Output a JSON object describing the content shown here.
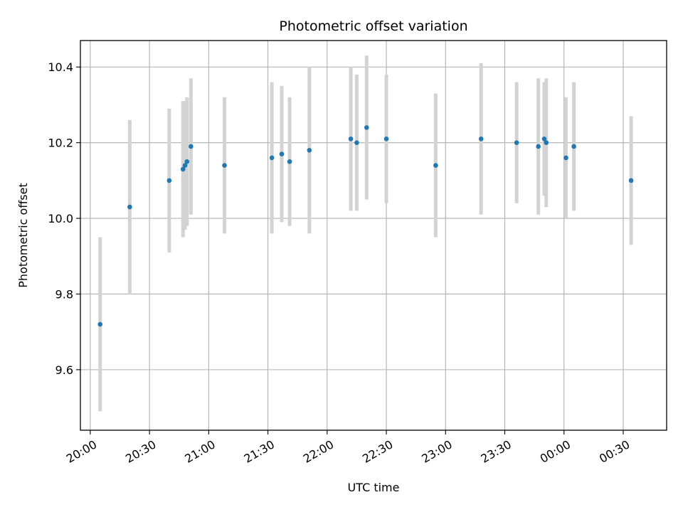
{
  "chart_data": {
    "type": "scatter",
    "title": "Photometric offset variation",
    "xlabel": "UTC time",
    "ylabel": "Photometric offset",
    "x_axis_type": "time",
    "x_start_date": "",
    "xlim": [
      "19:55",
      "00:52"
    ],
    "ylim": [
      9.44,
      10.47
    ],
    "x_ticks": [
      "20:00",
      "20:30",
      "21:00",
      "21:30",
      "22:00",
      "22:30",
      "23:00",
      "23:30",
      "00:00",
      "00:30"
    ],
    "y_ticks": [
      9.6,
      9.8,
      10.0,
      10.2,
      10.4
    ],
    "y_tick_labels": [
      "9.6",
      "9.8",
      "10.0",
      "10.2",
      "10.4"
    ],
    "grid": true,
    "marker_color": "#1f77b4",
    "errorbar_color": "#d3d3d3",
    "series": [
      {
        "points": [
          {
            "t": "20:05",
            "y": 9.72,
            "err": 0.23
          },
          {
            "t": "20:20",
            "y": 10.03,
            "err": 0.23
          },
          {
            "t": "20:40",
            "y": 10.1,
            "err": 0.19
          },
          {
            "t": "20:47",
            "y": 10.13,
            "err": 0.18
          },
          {
            "t": "20:48",
            "y": 10.14,
            "err": 0.17
          },
          {
            "t": "20:49",
            "y": 10.15,
            "err": 0.17
          },
          {
            "t": "20:51",
            "y": 10.19,
            "err": 0.18
          },
          {
            "t": "21:08",
            "y": 10.14,
            "err": 0.18
          },
          {
            "t": "21:32",
            "y": 10.16,
            "err": 0.2
          },
          {
            "t": "21:37",
            "y": 10.17,
            "err": 0.18
          },
          {
            "t": "21:41",
            "y": 10.15,
            "err": 0.17
          },
          {
            "t": "21:51",
            "y": 10.18,
            "err": 0.22
          },
          {
            "t": "22:12",
            "y": 10.21,
            "err": 0.19
          },
          {
            "t": "22:15",
            "y": 10.2,
            "err": 0.18
          },
          {
            "t": "22:20",
            "y": 10.24,
            "err": 0.19
          },
          {
            "t": "22:30",
            "y": 10.21,
            "err": 0.17
          },
          {
            "t": "22:55",
            "y": 10.14,
            "err": 0.19
          },
          {
            "t": "23:18",
            "y": 10.21,
            "err": 0.2
          },
          {
            "t": "23:36",
            "y": 10.2,
            "err": 0.16
          },
          {
            "t": "23:47",
            "y": 10.19,
            "err": 0.18
          },
          {
            "t": "23:50",
            "y": 10.21,
            "err": 0.15
          },
          {
            "t": "23:51",
            "y": 10.2,
            "err": 0.17
          },
          {
            "t": "00:01",
            "y": 10.16,
            "err": 0.16
          },
          {
            "t": "00:05",
            "y": 10.19,
            "err": 0.17
          },
          {
            "t": "00:34",
            "y": 10.1,
            "err": 0.17
          }
        ]
      }
    ]
  }
}
